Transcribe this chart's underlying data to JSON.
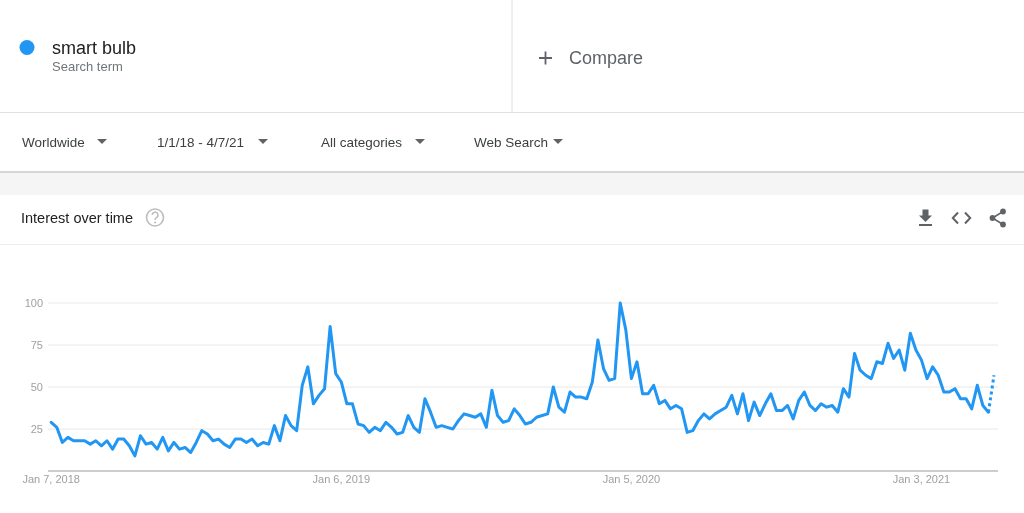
{
  "chart_data": {
    "type": "line",
    "title": "Interest over time",
    "annotations": [
      "Search term",
      "Compare",
      "Worldwide",
      "1/1/18 - 4/7/21",
      "All categories",
      "Web Search"
    ],
    "legend": "top left",
    "grid": "y",
    "line_style": "solid",
    "xlim": [
      "2018-01-03",
      "2021-04-09"
    ],
    "ylim": [
      0,
      100
    ],
    "yticks": [
      25,
      50,
      75,
      100
    ],
    "xticks": [
      {
        "value": "2018-01-07",
        "label": "Jan 7, 2018"
      },
      {
        "value": "2019-01-06",
        "label": "Jan 6, 2019"
      },
      {
        "value": "2020-01-05",
        "label": "Jan 5, 2020"
      },
      {
        "value": "2021-01-03",
        "label": "Jan 3, 2021"
      }
    ],
    "x": [
      "2018-01-07",
      "2018-01-14",
      "2018-01-21",
      "2018-01-28",
      "2018-02-04",
      "2018-02-11",
      "2018-02-18",
      "2018-02-25",
      "2018-03-04",
      "2018-03-11",
      "2018-03-18",
      "2018-03-25",
      "2018-04-01",
      "2018-04-08",
      "2018-04-15",
      "2018-04-22",
      "2018-04-29",
      "2018-05-06",
      "2018-05-13",
      "2018-05-20",
      "2018-05-27",
      "2018-06-03",
      "2018-06-10",
      "2018-06-17",
      "2018-06-24",
      "2018-07-01",
      "2018-07-08",
      "2018-07-15",
      "2018-07-22",
      "2018-07-29",
      "2018-08-05",
      "2018-08-12",
      "2018-08-19",
      "2018-08-26",
      "2018-09-02",
      "2018-09-09",
      "2018-09-16",
      "2018-09-23",
      "2018-09-30",
      "2018-10-07",
      "2018-10-14",
      "2018-10-21",
      "2018-10-28",
      "2018-11-04",
      "2018-11-11",
      "2018-11-18",
      "2018-11-25",
      "2018-12-02",
      "2018-12-09",
      "2018-12-16",
      "2018-12-23",
      "2018-12-30",
      "2019-01-06",
      "2019-01-13",
      "2019-01-20",
      "2019-01-27",
      "2019-02-03",
      "2019-02-10",
      "2019-02-17",
      "2019-02-24",
      "2019-03-03",
      "2019-03-10",
      "2019-03-17",
      "2019-03-24",
      "2019-03-31",
      "2019-04-07",
      "2019-04-14",
      "2019-04-21",
      "2019-04-28",
      "2019-05-05",
      "2019-05-12",
      "2019-05-19",
      "2019-05-26",
      "2019-06-02",
      "2019-06-09",
      "2019-06-16",
      "2019-06-23",
      "2019-06-30",
      "2019-07-07",
      "2019-07-14",
      "2019-07-21",
      "2019-07-28",
      "2019-08-04",
      "2019-08-11",
      "2019-08-18",
      "2019-08-25",
      "2019-09-01",
      "2019-09-08",
      "2019-09-15",
      "2019-09-22",
      "2019-09-29",
      "2019-10-06",
      "2019-10-13",
      "2019-10-20",
      "2019-10-27",
      "2019-11-03",
      "2019-11-10",
      "2019-11-17",
      "2019-11-24",
      "2019-12-01",
      "2019-12-08",
      "2019-12-15",
      "2019-12-22",
      "2019-12-29",
      "2020-01-05",
      "2020-01-12",
      "2020-01-19",
      "2020-01-26",
      "2020-02-02",
      "2020-02-09",
      "2020-02-16",
      "2020-02-23",
      "2020-03-01",
      "2020-03-08",
      "2020-03-15",
      "2020-03-22",
      "2020-03-29",
      "2020-04-05",
      "2020-04-12",
      "2020-04-19",
      "2020-04-26",
      "2020-05-03",
      "2020-05-10",
      "2020-05-17",
      "2020-05-24",
      "2020-05-31",
      "2020-06-07",
      "2020-06-14",
      "2020-06-21",
      "2020-06-28",
      "2020-07-05",
      "2020-07-12",
      "2020-07-19",
      "2020-07-26",
      "2020-08-02",
      "2020-08-09",
      "2020-08-16",
      "2020-08-23",
      "2020-08-30",
      "2020-09-06",
      "2020-09-13",
      "2020-09-20",
      "2020-09-27",
      "2020-10-04",
      "2020-10-11",
      "2020-10-18",
      "2020-10-25",
      "2020-11-01",
      "2020-11-08",
      "2020-11-15",
      "2020-11-22",
      "2020-11-29",
      "2020-12-06",
      "2020-12-13",
      "2020-12-20",
      "2020-12-27",
      "2021-01-03",
      "2021-01-10",
      "2021-01-17",
      "2021-01-24",
      "2021-01-31",
      "2021-02-07",
      "2021-02-14",
      "2021-02-21",
      "2021-02-28",
      "2021-03-07",
      "2021-03-14",
      "2021-03-21",
      "2021-03-28"
    ],
    "series": [
      {
        "name": "smart bulb",
        "color": "#2196f3",
        "values": [
          29,
          26,
          17,
          20,
          18,
          18,
          18,
          16,
          18,
          15,
          18,
          13,
          19,
          19,
          15,
          9,
          21,
          16,
          17,
          13,
          20,
          12,
          17,
          13,
          14,
          11,
          17,
          24,
          22,
          18,
          19,
          16,
          14,
          19,
          19,
          17,
          19,
          15,
          17,
          16,
          27,
          18,
          33,
          27,
          24,
          51,
          62,
          40,
          45,
          49,
          86,
          58,
          53,
          40,
          40,
          28,
          27,
          23,
          26,
          24,
          29,
          26,
          22,
          23,
          33,
          26,
          23,
          43,
          35,
          26,
          27,
          26,
          25,
          30,
          34,
          33,
          32,
          34,
          26,
          48,
          33,
          29,
          30,
          37,
          33,
          28,
          29,
          32,
          33,
          34,
          50,
          38,
          35,
          47,
          44,
          44,
          43,
          53,
          78,
          61,
          54,
          55,
          100,
          84,
          55,
          65,
          46,
          46,
          51,
          40,
          42,
          37,
          39,
          37,
          23,
          24,
          30,
          34,
          31,
          34,
          36,
          38,
          45,
          34,
          46,
          30,
          41,
          33,
          40,
          46,
          36,
          36,
          39,
          31,
          42,
          47,
          39,
          36,
          40,
          38,
          39,
          35,
          49,
          44,
          70,
          60,
          57,
          55,
          65,
          64,
          76,
          67,
          72,
          60,
          82,
          72,
          66,
          55,
          62,
          57,
          47,
          47,
          49,
          43,
          43,
          37,
          51,
          39,
          35
        ]
      },
      {
        "color": "#2196f3",
        "line_style": "dotted",
        "x": [
          "2021-03-28",
          "2021-04-04"
        ],
        "values": [
          35,
          57
        ]
      }
    ]
  }
}
